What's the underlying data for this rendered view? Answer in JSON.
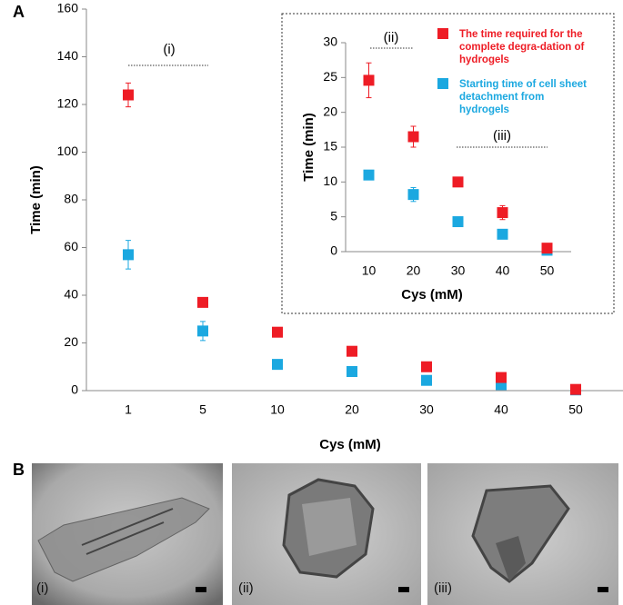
{
  "panel_labels": [
    "A",
    "B"
  ],
  "chart_data": [
    {
      "type": "scatter",
      "x_label": "Cys (mM)",
      "y_label": "Time (min)",
      "categories": [
        "1",
        "5",
        "10",
        "20",
        "30",
        "40",
        "50"
      ],
      "ylim": [
        0,
        160
      ],
      "yticks": [
        0,
        20,
        40,
        60,
        80,
        100,
        120,
        140,
        160
      ],
      "series": [
        {
          "color": "#1ba8e0",
          "values": [
            57,
            25,
            11,
            8,
            4.3,
            2.5,
            0.3
          ],
          "errors": [
            6,
            4,
            0,
            0,
            0,
            0,
            0
          ]
        },
        {
          "color": "#ee1c25",
          "values": [
            124,
            37,
            24.5,
            16.5,
            10,
            5.5,
            0.5
          ],
          "errors": [
            5,
            0,
            0,
            0,
            0,
            0,
            0
          ]
        }
      ],
      "annotations": [
        "(i)"
      ]
    },
    {
      "type": "scatter",
      "x_label": "Cys (mM)",
      "y_label": "Time (min)",
      "categories": [
        "10",
        "20",
        "30",
        "40",
        "50"
      ],
      "ylim": [
        0,
        30
      ],
      "yticks": [
        0,
        5,
        10,
        15,
        20,
        25,
        30
      ],
      "series": [
        {
          "name": "Starting time of cell sheet detachment from hydrogels",
          "color": "#1ba8e0",
          "values": [
            11,
            8.2,
            4.3,
            2.5,
            0.2
          ],
          "errors": [
            0,
            1,
            0,
            0,
            0
          ]
        },
        {
          "name": "The time required for the complete degra-dation of hydrogels",
          "color": "#ee1c25",
          "values": [
            24.6,
            16.5,
            10,
            5.6,
            0.5
          ],
          "errors": [
            2.5,
            1.5,
            0.5,
            1,
            0
          ]
        }
      ],
      "annotations": [
        "(ii)",
        "(iii)"
      ]
    }
  ],
  "micrographs": {
    "labels": [
      "(i)",
      "(ii)",
      "(iii)"
    ]
  }
}
